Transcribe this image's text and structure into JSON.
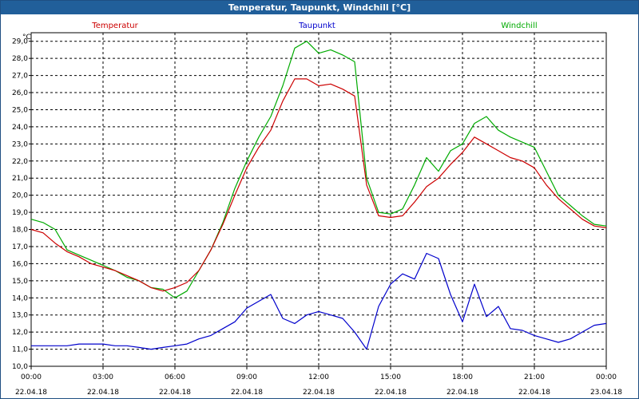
{
  "window": {
    "title": "Temperatur, Taupunkt, Windchill [°C]"
  },
  "colors": {
    "temperatur": "#cc0000",
    "taupunkt": "#0000cc",
    "windchill": "#00aa00",
    "grid": "#000000",
    "titlebar": "#215f9a"
  },
  "chart_data": {
    "type": "line",
    "title": "Temperatur, Taupunkt, Windchill [°C]",
    "ylabel": "°C",
    "xlabel": "",
    "ylim": [
      10.0,
      29.5
    ],
    "xlim": [
      "22.04.18 00:00",
      "23.04.18 00:00"
    ],
    "grid": true,
    "legend": "top",
    "y_ticks": [
      "10,0",
      "11,0",
      "12,0",
      "13,0",
      "14,0",
      "15,0",
      "16,0",
      "17,0",
      "18,0",
      "19,0",
      "20,0",
      "21,0",
      "22,0",
      "23,0",
      "24,0",
      "25,0",
      "26,0",
      "27,0",
      "28,0",
      "29,0"
    ],
    "x_ticks": [
      {
        "time": "00:00",
        "date": "22.04.18"
      },
      {
        "time": "03:00",
        "date": "22.04.18"
      },
      {
        "time": "06:00",
        "date": "22.04.18"
      },
      {
        "time": "09:00",
        "date": "22.04.18"
      },
      {
        "time": "12:00",
        "date": "22.04.18"
      },
      {
        "time": "15:00",
        "date": "22.04.18"
      },
      {
        "time": "18:00",
        "date": "22.04.18"
      },
      {
        "time": "21:00",
        "date": "22.04.18"
      },
      {
        "time": "00:00",
        "date": "23.04.18"
      }
    ],
    "x_hours": [
      0,
      0.5,
      1,
      1.5,
      2,
      2.5,
      3,
      3.5,
      4,
      4.5,
      5,
      5.5,
      6,
      6.5,
      7,
      7.5,
      8,
      8.5,
      9,
      9.5,
      10,
      10.5,
      11,
      11.5,
      12,
      12.5,
      13,
      13.5,
      14,
      14.5,
      15,
      15.5,
      16,
      16.5,
      17,
      17.5,
      18,
      18.5,
      19,
      19.5,
      20,
      20.5,
      21,
      21.5,
      22,
      22.5,
      23,
      23.5,
      24
    ],
    "series": [
      {
        "name": "Temperatur",
        "values": [
          18.0,
          17.8,
          17.2,
          16.7,
          16.4,
          16.0,
          15.8,
          15.6,
          15.3,
          15.0,
          14.6,
          14.4,
          14.6,
          14.9,
          15.6,
          16.8,
          18.3,
          20.0,
          21.6,
          22.8,
          23.8,
          25.5,
          26.8,
          26.8,
          26.4,
          26.5,
          26.2,
          25.8,
          20.6,
          18.8,
          18.7,
          18.8,
          19.6,
          20.5,
          21.0,
          21.8,
          22.5,
          23.4,
          23.0,
          22.6,
          22.2,
          22.0,
          21.6,
          20.6,
          19.8,
          19.2,
          18.6,
          18.2,
          18.1
        ]
      },
      {
        "name": "Taupunkt",
        "values": [
          11.2,
          11.2,
          11.2,
          11.2,
          11.3,
          11.3,
          11.3,
          11.2,
          11.2,
          11.1,
          11.0,
          11.1,
          11.2,
          11.3,
          11.6,
          11.8,
          12.2,
          12.6,
          13.4,
          13.8,
          14.2,
          12.8,
          12.5,
          13.0,
          13.2,
          13.0,
          12.8,
          12.0,
          11.0,
          13.5,
          14.8,
          15.4,
          15.1,
          16.6,
          16.3,
          14.2,
          12.6,
          14.8,
          12.9,
          13.5,
          12.2,
          12.1,
          11.8,
          11.6,
          11.4,
          11.6,
          12.0,
          12.4,
          12.5
        ]
      },
      {
        "name": "Windchill",
        "values": [
          18.6,
          18.4,
          18.0,
          16.8,
          16.5,
          16.2,
          15.9,
          15.6,
          15.2,
          15.0,
          14.6,
          14.5,
          14.0,
          14.4,
          15.6,
          16.8,
          18.4,
          20.4,
          22.0,
          23.4,
          24.6,
          26.4,
          28.6,
          29.0,
          28.3,
          28.5,
          28.2,
          27.8,
          21.0,
          19.0,
          18.9,
          19.2,
          20.6,
          22.2,
          21.4,
          22.6,
          23.0,
          24.2,
          24.6,
          23.8,
          23.4,
          23.1,
          22.8,
          21.4,
          20.0,
          19.4,
          18.8,
          18.3,
          18.2
        ]
      }
    ]
  }
}
